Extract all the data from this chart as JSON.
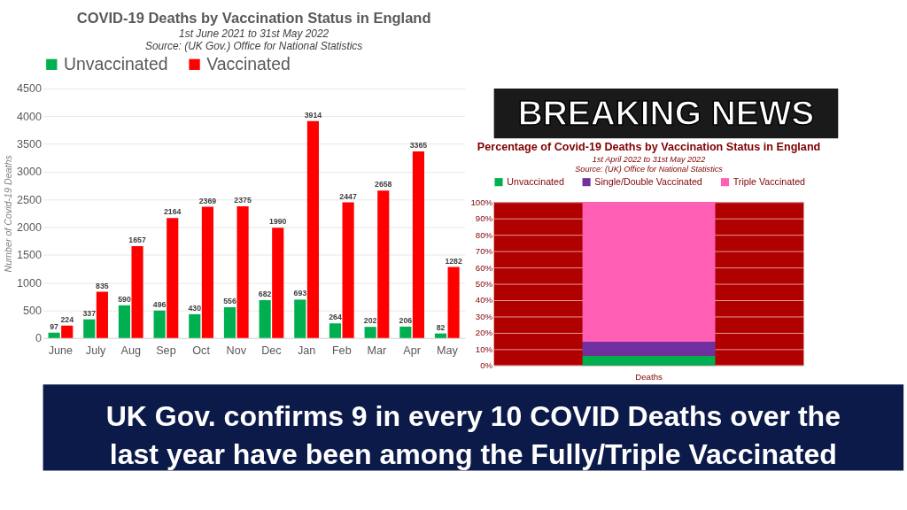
{
  "chart_data": [
    {
      "type": "bar",
      "title": "COVID-19 Deaths by Vaccination Status in England",
      "subtitle": "1st June 2021 to 31st May 2022",
      "annotations": [
        "Source: (UK Gov.) Office for National Statistics"
      ],
      "ylabel": "Number of Covid-19 Deaths",
      "categories": [
        "June",
        "July",
        "Aug",
        "Sep",
        "Oct",
        "Nov",
        "Dec",
        "Jan",
        "Feb",
        "Mar",
        "Apr",
        "May"
      ],
      "series": [
        {
          "name": "Unvaccinated",
          "color": "#00b050",
          "values": [
            97,
            337,
            590,
            496,
            430,
            556,
            682,
            693,
            264,
            202,
            206,
            82
          ]
        },
        {
          "name": "Vaccinated",
          "color": "#ff0000",
          "values": [
            224,
            835,
            1657,
            2164,
            2369,
            2375,
            1990,
            3914,
            2447,
            2658,
            3365,
            1282
          ]
        }
      ],
      "ylim": [
        0,
        4500
      ],
      "yticks": [
        0,
        500,
        1000,
        1500,
        2000,
        2500,
        3000,
        3500,
        4000,
        4500
      ],
      "grid": "y",
      "legend": "top",
      "data_labels": true
    },
    {
      "type": "bar",
      "stacked": true,
      "title": "Percentage of Covid-19 Deaths by Vaccination Status in England",
      "subtitle": "1st April 2022 to 31st May 2022",
      "annotations": [
        "Source: (UK) Office for National Statistics"
      ],
      "categories": [
        "Deaths"
      ],
      "series": [
        {
          "name": "Unvaccinated",
          "color": "#00b050",
          "values": [
            6
          ]
        },
        {
          "name": "Single/Double Vaccinated",
          "color": "#7030a0",
          "values": [
            8.5
          ]
        },
        {
          "name": "Triple Vaccinated",
          "color": "#ff5fb4",
          "values": [
            85.5
          ]
        }
      ],
      "ylim": [
        0,
        100
      ],
      "yticks": [
        {
          "value": 0,
          "label": "0%"
        },
        {
          "value": 10,
          "label": "10%"
        },
        {
          "value": 20,
          "label": "20%"
        },
        {
          "value": 30,
          "label": "30%"
        },
        {
          "value": 40,
          "label": "40%"
        },
        {
          "value": 50,
          "label": "50%"
        },
        {
          "value": 60,
          "label": "60%"
        },
        {
          "value": 70,
          "label": "70%"
        },
        {
          "value": 80,
          "label": "80%"
        },
        {
          "value": 90,
          "label": "90%"
        },
        {
          "value": 100,
          "label": "100%"
        }
      ],
      "grid": "y",
      "legend": "top"
    },
    {
      "type": "other",
      "annotations": [
        "BREAKING NEWS",
        "UK Gov. confirms 9 in every 10 COVID Deaths over the last year have been among the Fully/Triple Vaccinated"
      ]
    }
  ]
}
